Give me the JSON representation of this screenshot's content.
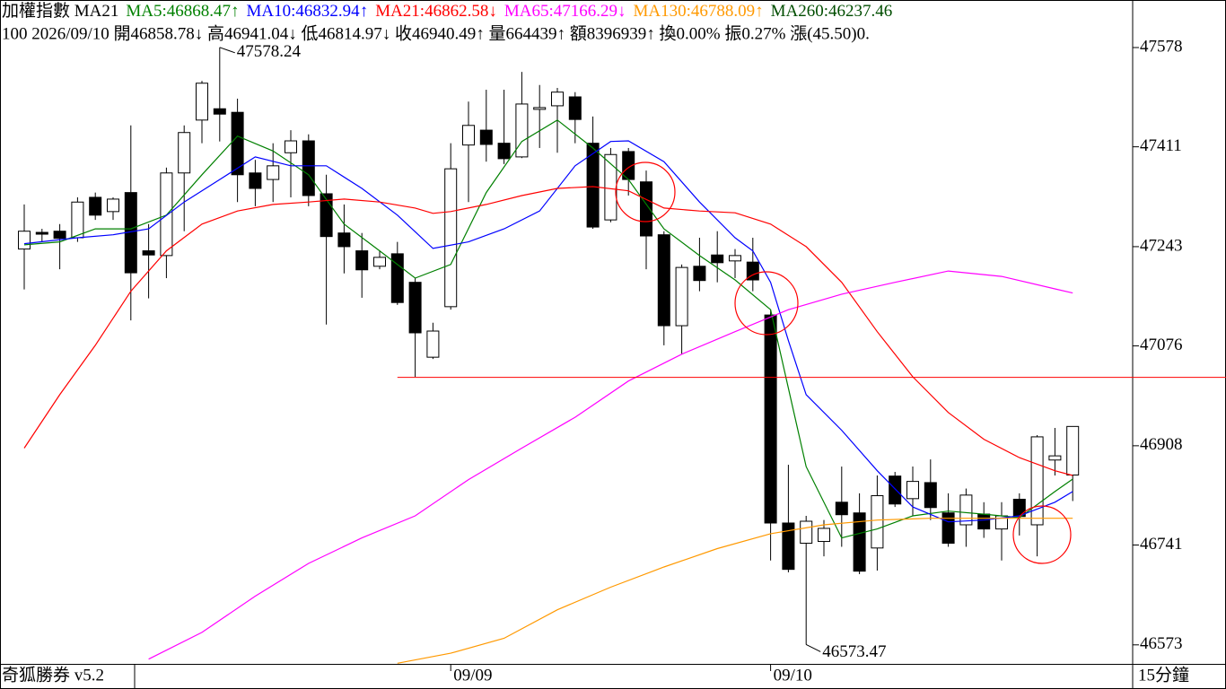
{
  "chart_data": {
    "type": "candlestick",
    "title": "加權指數 MA21",
    "info": "100 2026/09/10 開46858.78↓ 高46941.04↓ 低46814.97↓ 收46940.49↑ 量664439↑ 額8396939↑ 換0.00% 振0.27% 漲(45.50)0.",
    "footer": {
      "left": "奇狐勝券 v5.2",
      "right": "15分鐘"
    },
    "up_color": "#ffffff",
    "down_color": "#000000",
    "open": [
      47239,
      47267,
      47269,
      47258,
      47326,
      47302,
      47334,
      47236,
      47228,
      47367,
      47456,
      47475,
      47469,
      47367,
      47356,
      47401,
      47421,
      47332,
      47266,
      47236,
      47210,
      47231,
      47183,
      47057,
      47142,
      47414,
      47439,
      47417,
      47394,
      47474,
      47480,
      47495,
      47417,
      47288,
      47403,
      47352,
      47263,
      47110,
      47210,
      47229,
      47219,
      47217,
      47128,
      46778,
      46744,
      46747,
      46813,
      46795,
      46736,
      46857,
      46819,
      46846,
      46795,
      46775,
      46793,
      46768,
      46818,
      46775,
      46884,
      46858.78
    ],
    "high": [
      47314,
      47273,
      47281,
      47326,
      47334,
      47326,
      47447,
      47281,
      47376,
      47447,
      47522,
      47578.24,
      47492,
      47389,
      47417,
      47439,
      47432,
      47364,
      47314,
      47266,
      47236,
      47251,
      47190,
      47115,
      47417,
      47487,
      47507,
      47507,
      47537,
      47515,
      47510,
      47503,
      47462,
      47409,
      47409,
      47371,
      47269,
      47213,
      47258,
      47269,
      47239,
      47258,
      47137,
      46876,
      46790,
      46783,
      46873,
      46828,
      46858,
      46864,
      46873,
      46885,
      46828,
      46836,
      46813,
      46813,
      46828,
      46926,
      46938,
      46941.04
    ],
    "low": [
      47171,
      47251,
      47205,
      47251,
      47288,
      47288,
      47119,
      47156,
      47190,
      47269,
      47417,
      47420,
      47318,
      47311,
      47318,
      47326,
      47311,
      47112,
      47198,
      47157,
      47205,
      47145,
      47024,
      47054,
      47137,
      47318,
      47386,
      47382,
      47392,
      47409,
      47401,
      47417,
      47273,
      47284,
      47329,
      47205,
      47077,
      47062,
      47168,
      47183,
      47190,
      47168,
      46715,
      46695,
      46573.47,
      46722,
      46738,
      46692,
      46698,
      46805,
      46790,
      46783,
      46738,
      46738,
      46753,
      46715,
      46757,
      46722,
      46858,
      46814.97
    ],
    "close": [
      47269,
      47264,
      47257,
      47318,
      47296,
      47323,
      47199,
      47229,
      47367,
      47435,
      47518,
      47466,
      47364,
      47341,
      47379,
      47421,
      47329,
      47260,
      47243,
      47204,
      47225,
      47149,
      47098,
      47101,
      47374,
      47447,
      47415,
      47391,
      47483,
      47477,
      47503,
      47457,
      47276,
      47398,
      47356,
      47261,
      47110,
      47208,
      47186,
      47216,
      47228,
      47187,
      46778,
      46700,
      46781,
      46769,
      46792,
      46697,
      46824,
      46810,
      46848,
      46804,
      46744,
      46825,
      46768,
      46790,
      46789,
      46923,
      46891,
      46940.49
    ],
    "series": [
      {
        "name": "MA5:46868.47",
        "trend": "↑",
        "color": "#008000",
        "x": [
          0,
          2,
          4,
          6,
          8,
          10,
          12,
          14,
          16,
          18,
          20,
          22,
          24,
          26,
          28,
          30,
          32,
          34,
          36,
          38,
          40,
          42,
          44,
          46,
          48,
          50,
          52,
          54,
          56,
          58,
          59
        ],
        "values": [
          47246,
          47251,
          47273,
          47273,
          47296,
          47364,
          47429,
          47404,
          47364,
          47281,
          47236,
          47190,
          47213,
          47334,
          47420,
          47456,
          47409,
          47356,
          47273,
          47228,
          47187,
          47137,
          46873,
          46753,
          46768,
          46790,
          46798,
          46793,
          46787,
          46831,
          46852
        ]
      },
      {
        "name": "MA10:46832.94",
        "trend": "↑",
        "color": "#0000ff",
        "x": [
          0,
          3,
          5,
          7,
          9,
          11,
          13,
          15,
          17,
          19,
          21,
          23,
          25,
          27,
          29,
          31,
          33,
          34,
          36,
          38,
          40,
          41,
          42,
          43,
          44,
          46,
          48,
          50,
          52,
          54,
          56,
          58,
          59
        ],
        "values": [
          47248,
          47258,
          47263,
          47273,
          47318,
          47356,
          47394,
          47379,
          47379,
          47341,
          47296,
          47240,
          47251,
          47273,
          47303,
          47379,
          47420,
          47421,
          47386,
          47318,
          47258,
          47236,
          47183,
          47085,
          46994,
          46934,
          46866,
          46805,
          46780,
          46783,
          46790,
          46813,
          46831
        ]
      },
      {
        "name": "MA21:46862.58",
        "trend": "↓",
        "color": "#ff0000",
        "x": [
          0,
          2,
          4,
          6,
          8,
          10,
          12,
          14,
          16,
          18,
          20,
          22,
          23,
          24,
          26,
          28,
          30,
          32,
          34,
          36,
          38,
          40,
          42,
          44,
          46,
          48,
          50,
          52,
          54,
          56,
          58,
          59
        ],
        "values": [
          46904,
          46994,
          47077,
          47168,
          47236,
          47281,
          47303,
          47314,
          47318,
          47323,
          47318,
          47308,
          47299,
          47302,
          47314,
          47329,
          47341,
          47344,
          47337,
          47308,
          47303,
          47300,
          47281,
          47243,
          47183,
          47100,
          47024,
          46964,
          46919,
          46888,
          46866,
          46858
        ]
      },
      {
        "name": "MA65:47166.29",
        "trend": "↓",
        "color": "#ff00ff",
        "x": [
          7,
          10,
          13,
          16,
          19,
          22,
          25,
          28,
          31,
          34,
          37,
          40,
          43,
          46,
          49,
          52,
          55,
          58,
          59
        ],
        "values": [
          46549,
          46594,
          46655,
          46710,
          46753,
          46790,
          46851,
          46904,
          46956,
          47017,
          47062,
          47100,
          47137,
          47163,
          47183,
          47202,
          47193,
          47172,
          47165
        ]
      },
      {
        "name": "MA130:46788.09",
        "trend": "↑",
        "color": "#ff9900",
        "x": [
          21,
          24,
          27,
          30,
          33,
          36,
          39,
          42,
          45,
          48,
          51,
          54,
          57,
          59
        ],
        "values": [
          46542,
          46559,
          46584,
          46632,
          46670,
          46704,
          46735,
          46760,
          46775,
          46783,
          46786,
          46786,
          46786,
          46786
        ]
      },
      {
        "name": "MA260:46237.46",
        "color": "#004d00",
        "x": [],
        "values": []
      }
    ],
    "hline": {
      "value": 47023,
      "from": 21,
      "color": "#ff0000"
    },
    "ylim": [
      46541,
      47658
    ],
    "yticks": [
      47578,
      47411,
      47243,
      47076,
      46908,
      46741,
      46573
    ],
    "xticks": [
      {
        "value": 24,
        "label": "09/09"
      },
      {
        "value": 42,
        "label": "09/10"
      }
    ]
  }
}
